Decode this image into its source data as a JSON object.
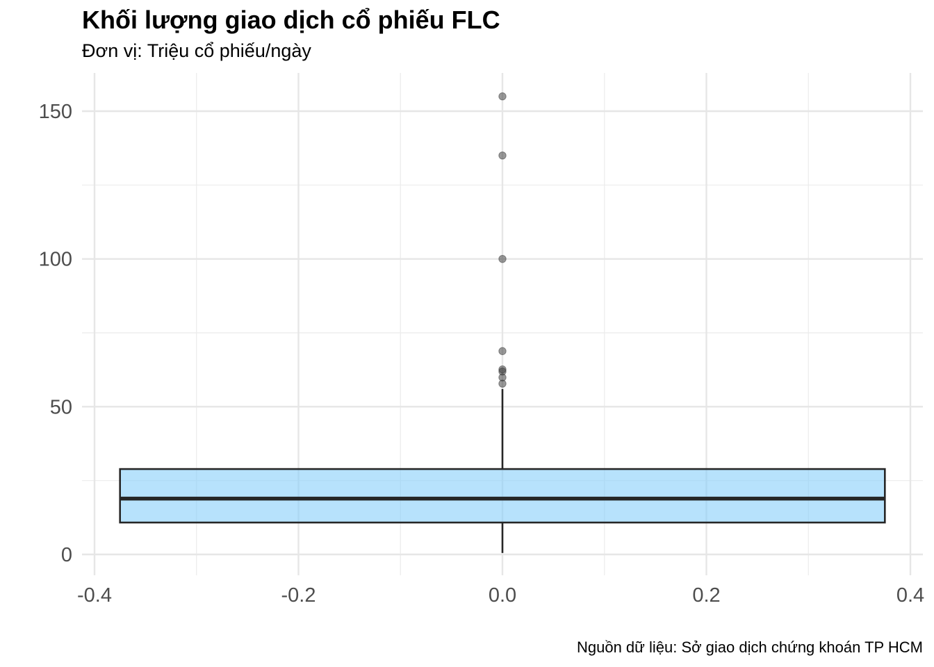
{
  "chart_data": {
    "type": "boxplot",
    "title": "Khối lượng giao dịch cổ phiếu FLC",
    "subtitle": "Đơn vị: Triệu cổ phiếu/ngày",
    "caption": "Nguồn dữ liệu: Sở giao dịch chứng khoán TP HCM",
    "xlabel": "",
    "ylabel": "",
    "xlim": [
      -0.4,
      0.4
    ],
    "ylim": [
      0,
      155
    ],
    "x_ticks": [
      {
        "value": -0.4,
        "label": "-0.4"
      },
      {
        "value": -0.2,
        "label": "-0.2"
      },
      {
        "value": 0.0,
        "label": "0.0"
      },
      {
        "value": 0.2,
        "label": "0.2"
      },
      {
        "value": 0.4,
        "label": "0.4"
      }
    ],
    "y_ticks": [
      {
        "value": 0,
        "label": "0"
      },
      {
        "value": 50,
        "label": "50"
      },
      {
        "value": 100,
        "label": "100"
      },
      {
        "value": 150,
        "label": "150"
      }
    ],
    "grid": true,
    "box": {
      "x": 0,
      "x_range": [
        -0.375,
        0.375
      ],
      "min": 0.5,
      "q1": 10.8,
      "median": 18.9,
      "q3": 28.9,
      "max": 56.0,
      "fill": "#87CEFA",
      "fill_opacity": 0.6,
      "stroke": "#262626"
    },
    "outliers": [
      57.8,
      59.9,
      61.9,
      62.6,
      68.8,
      100.0,
      135.0,
      155.0
    ],
    "outlier_color": "#333333",
    "outlier_opacity": 0.5
  }
}
